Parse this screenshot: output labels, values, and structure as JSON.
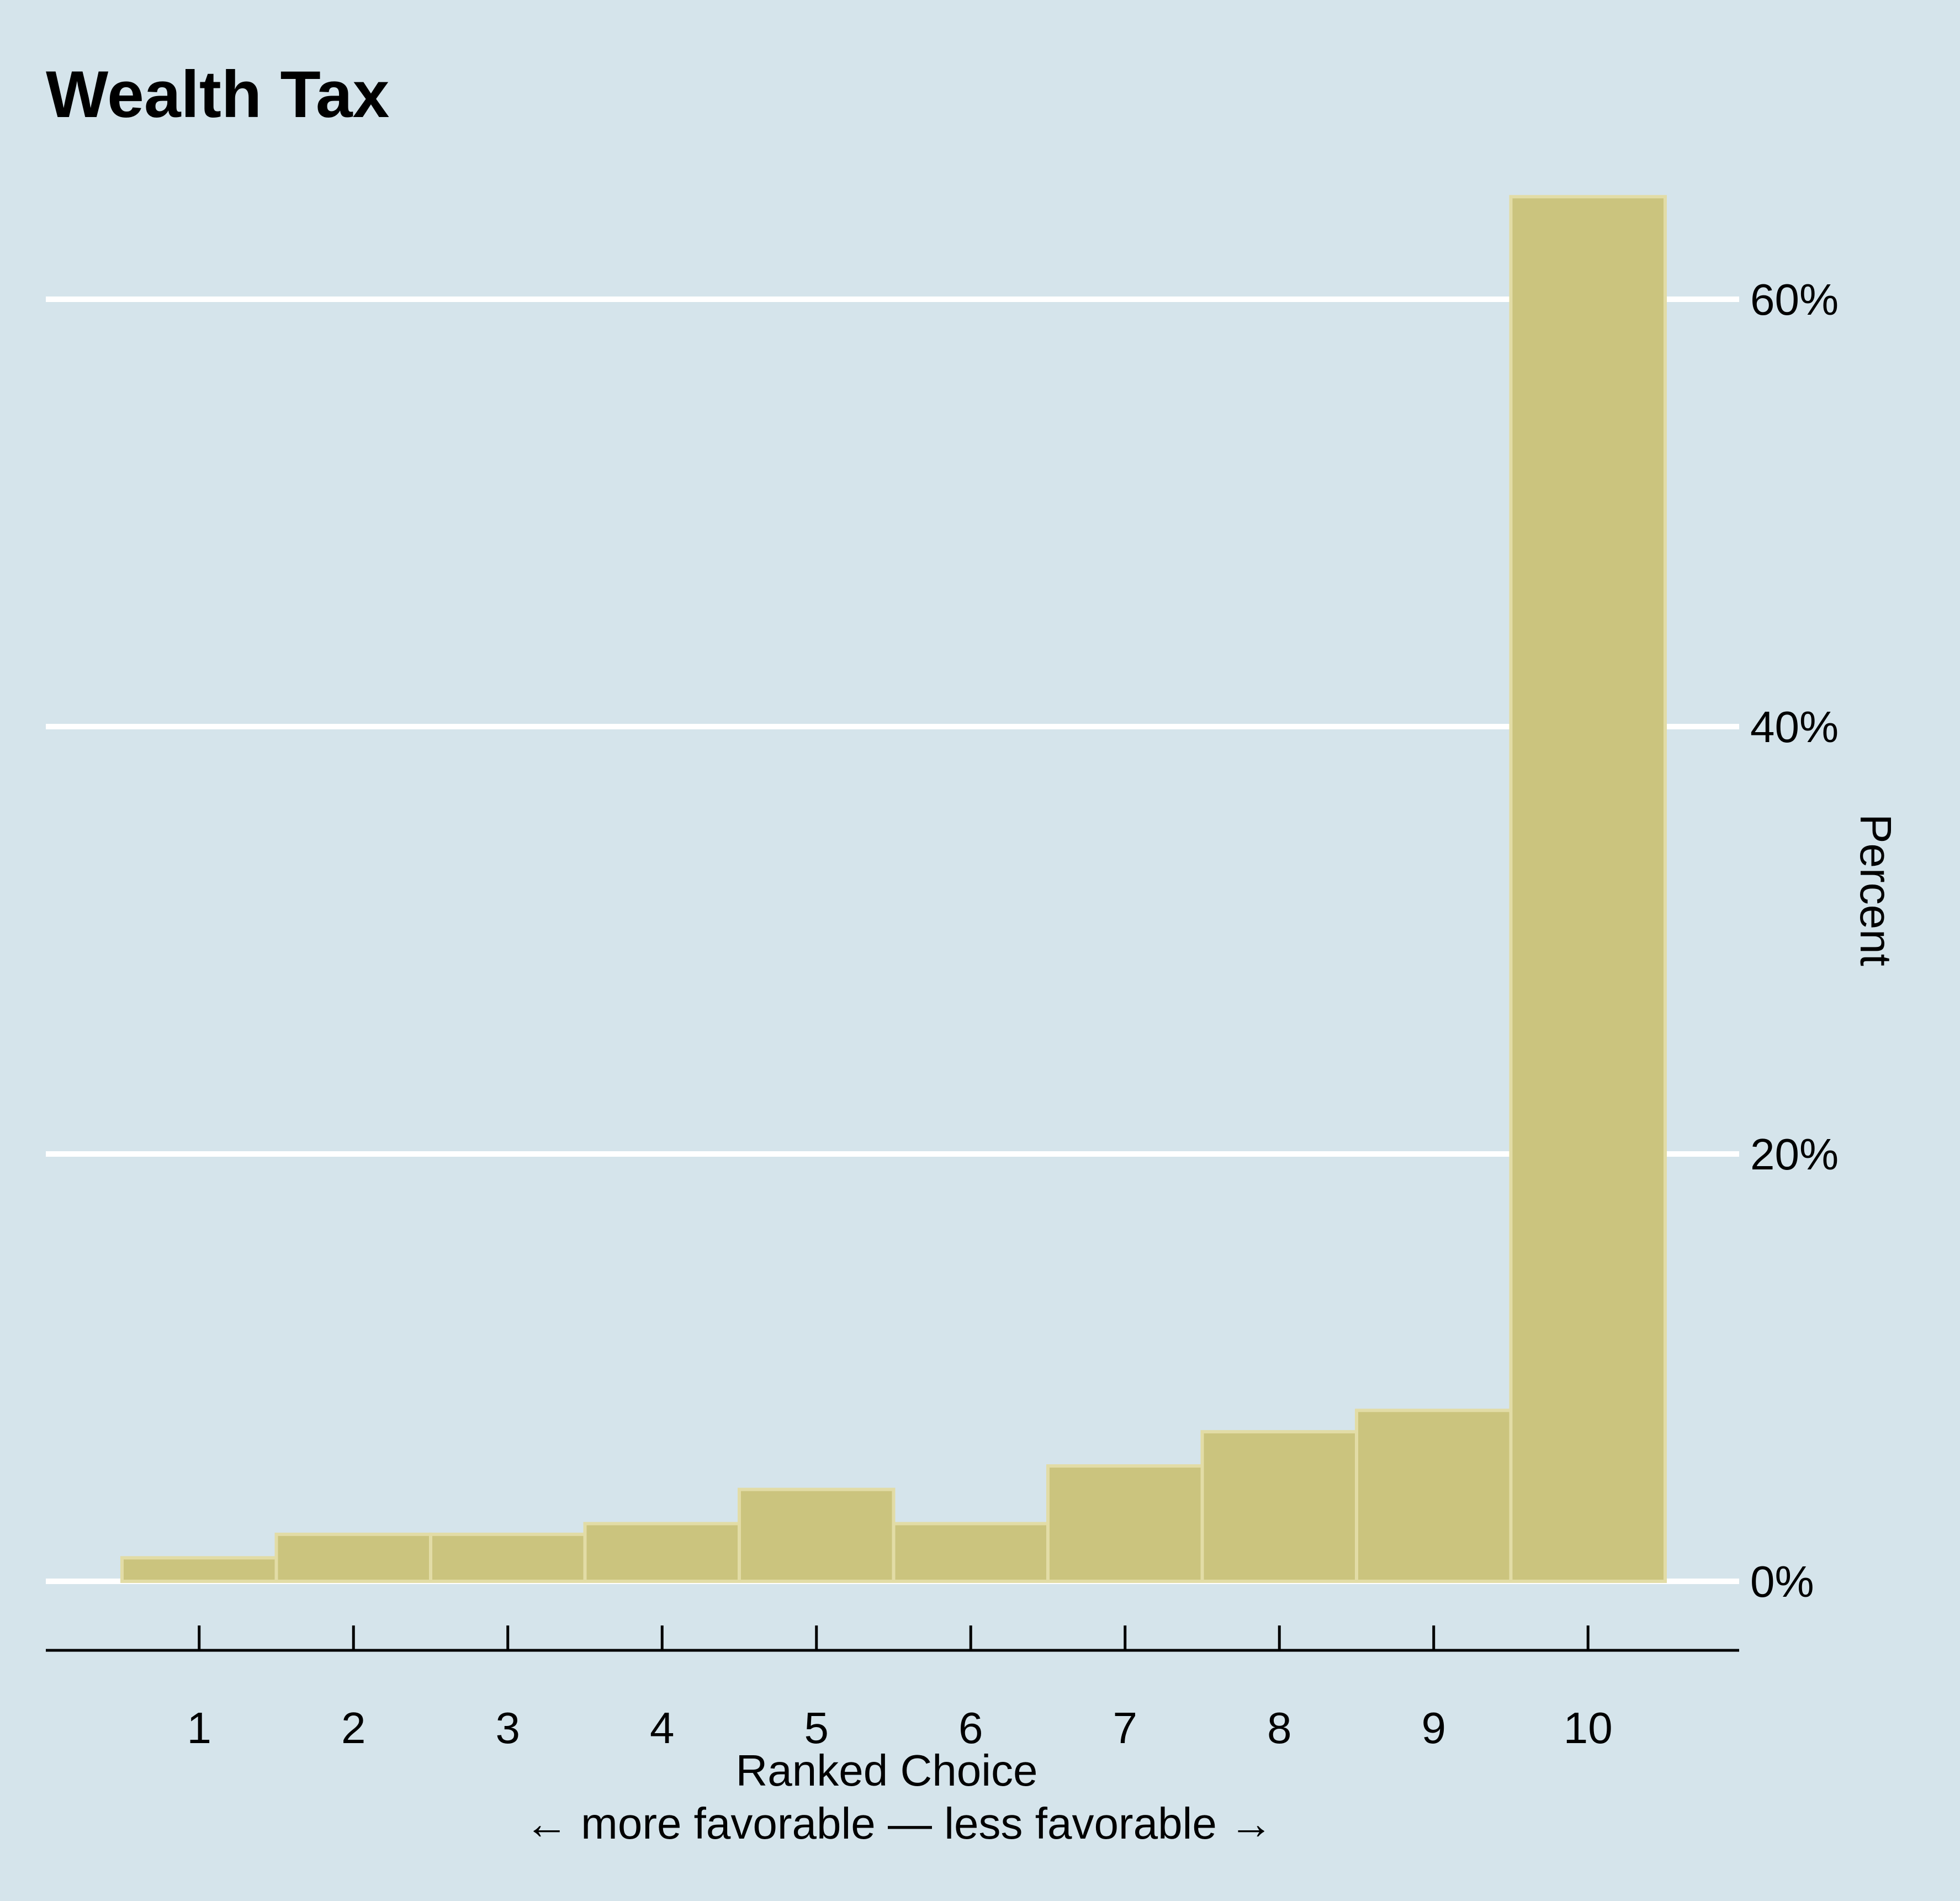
{
  "colors": {
    "background": "#d5e4eb",
    "bar_fill": "#cbc47e",
    "bar_stroke": "#e2dca6",
    "gridline": "#ffffff",
    "text": "#000000"
  },
  "chart_data": {
    "type": "bar",
    "title": "Wealth Tax",
    "xlabel": "Ranked Choice",
    "xlabel_sub": "← more favorable — less favorable →",
    "ylabel": "Percent",
    "categories": [
      "1",
      "2",
      "3",
      "4",
      "5",
      "6",
      "7",
      "8",
      "9",
      "10"
    ],
    "values": [
      1.1,
      2.2,
      2.2,
      2.7,
      4.3,
      2.7,
      5.4,
      7.0,
      8.0,
      64.8
    ],
    "y_ticks": [
      0,
      20,
      40,
      60
    ],
    "y_tick_labels": [
      "0%",
      "20%",
      "40%",
      "60%"
    ],
    "ylim": [
      0,
      64.8
    ],
    "y_axis_position": "right",
    "grid": true
  }
}
